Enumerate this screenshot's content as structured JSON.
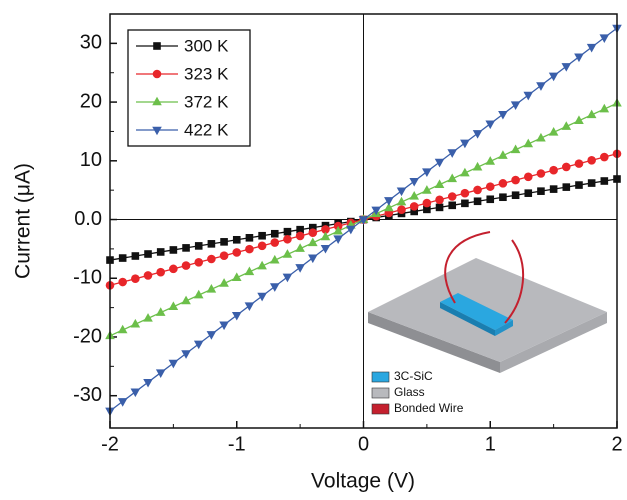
{
  "chart_data": {
    "type": "line",
    "x_label": "Voltage (V)",
    "y_label": "Current (μA)",
    "x": [
      -2,
      -1.9,
      -1.8,
      -1.7,
      -1.6,
      -1.5,
      -1.4,
      -1.3,
      -1.2,
      -1.1,
      -1,
      -0.9,
      -0.8,
      -0.7,
      -0.6,
      -0.5,
      -0.4,
      -0.3,
      -0.2,
      -0.1,
      0,
      0.1,
      0.2,
      0.3,
      0.4,
      0.5,
      0.6,
      0.7,
      0.8,
      0.9,
      1,
      1.1,
      1.2,
      1.3,
      1.4,
      1.5,
      1.6,
      1.7,
      1.8,
      1.9,
      2
    ],
    "series": [
      {
        "name": "300 K",
        "color": "#111111",
        "marker": "square",
        "values": [
          -6.9,
          -6.56,
          -6.21,
          -5.87,
          -5.52,
          -5.18,
          -4.83,
          -4.49,
          -4.14,
          -3.8,
          -3.45,
          -3.11,
          -2.76,
          -2.42,
          -2.07,
          -1.73,
          -1.38,
          -1.04,
          -0.69,
          -0.35,
          0,
          0.35,
          0.69,
          1.04,
          1.38,
          1.73,
          2.07,
          2.42,
          2.76,
          3.11,
          3.45,
          3.8,
          4.14,
          4.49,
          4.83,
          5.18,
          5.52,
          5.87,
          6.21,
          6.56,
          6.9
        ]
      },
      {
        "name": "323 K",
        "color": "#e8262a",
        "marker": "circle",
        "values": [
          -11.2,
          -10.64,
          -10.08,
          -9.52,
          -8.96,
          -8.4,
          -7.84,
          -7.28,
          -6.72,
          -6.16,
          -5.6,
          -5.04,
          -4.48,
          -3.92,
          -3.36,
          -2.8,
          -2.24,
          -1.68,
          -1.12,
          -0.56,
          0,
          0.56,
          1.12,
          1.68,
          2.24,
          2.8,
          3.36,
          3.92,
          4.48,
          5.04,
          5.6,
          6.16,
          6.72,
          7.28,
          7.84,
          8.4,
          8.96,
          9.52,
          10.08,
          10.64,
          11.2
        ]
      },
      {
        "name": "372 K",
        "color": "#6cbf4a",
        "marker": "triangle-up",
        "values": [
          -19.8,
          -18.81,
          -17.82,
          -16.83,
          -15.84,
          -14.85,
          -13.86,
          -12.87,
          -11.88,
          -10.89,
          -9.9,
          -8.91,
          -7.92,
          -6.93,
          -5.94,
          -4.95,
          -3.96,
          -2.97,
          -1.98,
          -0.99,
          0,
          0.99,
          1.98,
          2.97,
          3.96,
          4.95,
          5.94,
          6.93,
          7.92,
          8.91,
          9.9,
          10.89,
          11.88,
          12.87,
          13.86,
          14.85,
          15.84,
          16.83,
          17.82,
          18.81,
          19.8
        ]
      },
      {
        "name": "422 K",
        "color": "#3a5faa",
        "marker": "triangle-down",
        "values": [
          -32.6,
          -30.97,
          -29.34,
          -27.71,
          -26.08,
          -24.45,
          -22.82,
          -21.19,
          -19.56,
          -17.93,
          -16.3,
          -14.67,
          -13.04,
          -11.41,
          -9.78,
          -8.15,
          -6.52,
          -4.89,
          -3.26,
          -1.63,
          0,
          1.63,
          3.26,
          4.89,
          6.52,
          8.15,
          9.78,
          11.41,
          13.04,
          14.67,
          16.3,
          17.93,
          19.56,
          21.19,
          22.82,
          24.45,
          26.08,
          27.71,
          29.34,
          30.97,
          32.6
        ]
      }
    ],
    "xlim": [
      -2,
      2
    ],
    "xticks": [
      -2,
      -1,
      0,
      1,
      2
    ],
    "ylim": [
      -35.5,
      35
    ],
    "yticks": [
      -30,
      -20,
      -10,
      {
        "value": 0,
        "label": "0.0"
      },
      10,
      20,
      30
    ],
    "legend": "upper-left",
    "inset_legend": [
      {
        "label": "3C-SiC",
        "color": "#2aa7e0"
      },
      {
        "label": "Glass",
        "color": "#b8b9bd"
      },
      {
        "label": "Bonded Wire",
        "color": "#c4202e"
      }
    ]
  }
}
